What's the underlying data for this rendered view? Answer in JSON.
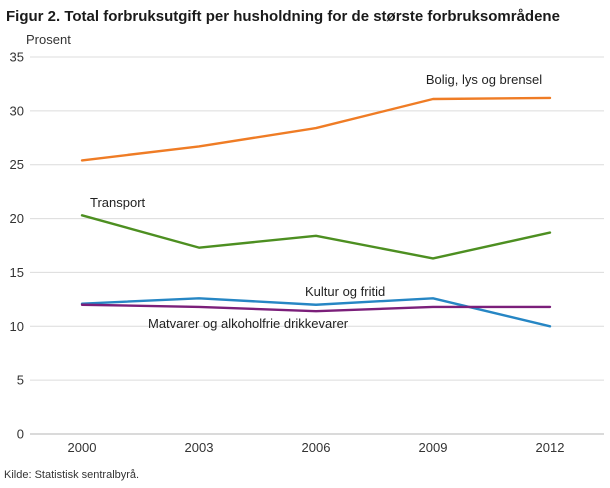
{
  "page": {
    "title": "Figur 2. Total forbruksutgift per husholdning for de største forbruksområdene",
    "y_axis_unit": "Prosent",
    "source": "Kilde: Statistisk sentralbyrå."
  },
  "chart_data": {
    "type": "line",
    "title": "Figur 2. Total forbruksutgift per husholdning for de største forbruksområdene",
    "xlabel": "",
    "ylabel": "Prosent",
    "ylim": [
      0,
      35
    ],
    "y_ticks": [
      0,
      5,
      10,
      15,
      20,
      25,
      30,
      35
    ],
    "categories": [
      "2000",
      "2003",
      "2006",
      "2009",
      "2012"
    ],
    "grid": true,
    "legend_position": "inline-labels",
    "series": [
      {
        "name": "Bolig, lys og brensel",
        "color": "#ef7c25",
        "values": [
          25.4,
          26.7,
          28.4,
          31.1,
          31.2
        ]
      },
      {
        "name": "Transport",
        "color": "#4d8f21",
        "values": [
          20.3,
          17.3,
          18.4,
          16.3,
          18.7
        ]
      },
      {
        "name": "Kultur og fritid",
        "color": "#2686c4",
        "values": [
          12.1,
          12.6,
          12.0,
          12.6,
          10.0
        ]
      },
      {
        "name": "Matvarer og alkoholfrie drikkevarer",
        "color": "#7b1f7a",
        "values": [
          12.0,
          11.8,
          11.4,
          11.8,
          11.8
        ]
      }
    ],
    "source": "Kilde: Statistisk sentralbyrå."
  }
}
